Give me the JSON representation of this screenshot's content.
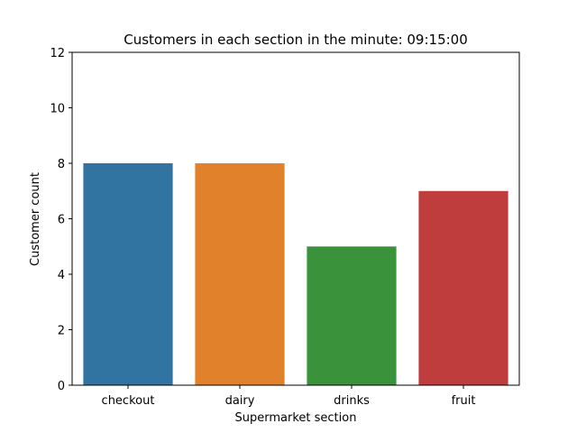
{
  "chart_data": {
    "type": "bar",
    "title": "Customers in each section in the minute: 09:15:00",
    "xlabel": "Supermarket section",
    "ylabel": "Customer count",
    "categories": [
      "checkout",
      "dairy",
      "drinks",
      "fruit"
    ],
    "values": [
      8,
      8,
      5,
      7
    ],
    "colors": [
      "#3274a1",
      "#e1812c",
      "#3a923a",
      "#c03d3e"
    ],
    "ylim": [
      0,
      12
    ],
    "yticks": [
      0,
      2,
      4,
      6,
      8,
      10,
      12
    ],
    "grid": false,
    "legend": "none"
  }
}
